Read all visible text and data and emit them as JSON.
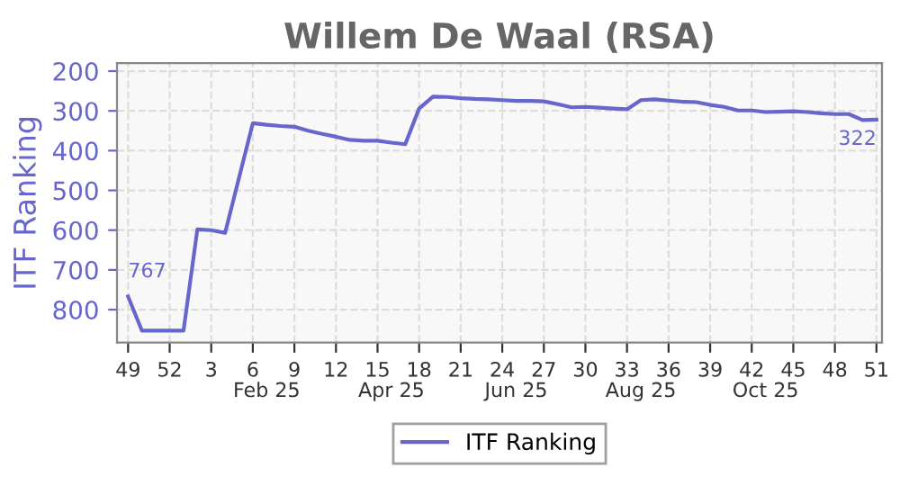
{
  "chart_data": {
    "type": "line",
    "title": "Willem De Waal (RSA)",
    "ylabel": "ITF Ranking",
    "categories": [
      "49",
      null,
      null,
      "52",
      null,
      null,
      "3",
      null,
      null,
      "6",
      null,
      null,
      "9",
      null,
      null,
      "12",
      null,
      null,
      "15",
      null,
      null,
      "18",
      null,
      null,
      "21",
      null,
      null,
      "24",
      null,
      null,
      "27",
      null,
      null,
      "30",
      null,
      null,
      "33",
      null,
      null,
      "36",
      null,
      null,
      "39",
      null,
      null,
      "42",
      null,
      null,
      "45",
      null,
      null,
      "48",
      null,
      null,
      "51"
    ],
    "series": [
      {
        "name": "ITF Ranking",
        "color": "#6666cc",
        "values": [
          767,
          853,
          853,
          853,
          853,
          598,
          600,
          607,
          469,
          331,
          335,
          338,
          340,
          350,
          358,
          365,
          373,
          375,
          375,
          380,
          384,
          294,
          264,
          265,
          268,
          270,
          271,
          273,
          275,
          275,
          276,
          283,
          291,
          290,
          292,
          294,
          296,
          273,
          271,
          274,
          277,
          278,
          285,
          290,
          299,
          299,
          303,
          302,
          301,
          303,
          306,
          308,
          308,
          323,
          322
        ],
        "value_labels": [
          "767",
          null,
          null,
          null,
          null,
          null,
          null,
          null,
          null,
          null,
          null,
          null,
          null,
          null,
          null,
          null,
          null,
          null,
          null,
          null,
          null,
          null,
          null,
          null,
          null,
          null,
          null,
          null,
          null,
          null,
          null,
          null,
          null,
          null,
          null,
          null,
          null,
          null,
          null,
          null,
          null,
          null,
          null,
          null,
          null,
          null,
          null,
          null,
          null,
          null,
          null,
          null,
          null,
          null,
          "322"
        ]
      }
    ],
    "annotations": [
      "Feb 25",
      "Apr 25",
      "Jun 25",
      "Aug 25",
      "Oct 25"
    ],
    "ylim": [
      883,
      180
    ],
    "yticks": [
      200,
      300,
      400,
      500,
      600,
      700,
      800
    ],
    "grid": true,
    "legend": "bottom",
    "marker": "none",
    "line_style": "solid"
  }
}
